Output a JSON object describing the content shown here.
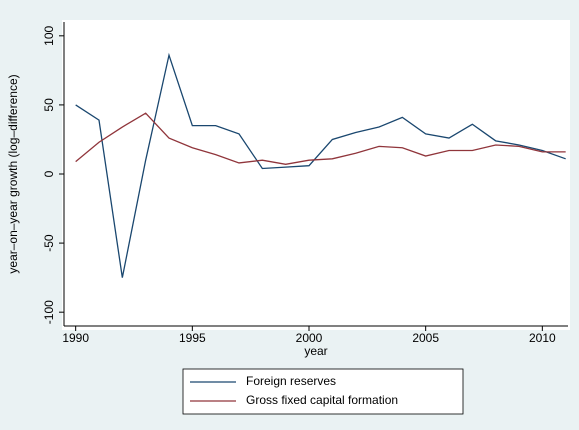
{
  "chart_data": {
    "type": "line",
    "x_label": "year",
    "y_label": "year–on–year growth (log–difference)",
    "x": [
      1990,
      1991,
      1992,
      1993,
      1994,
      1995,
      1996,
      1997,
      1998,
      1999,
      2000,
      2001,
      2002,
      2003,
      2004,
      2005,
      2006,
      2007,
      2008,
      2009,
      2010,
      2011
    ],
    "series": [
      {
        "name": "Foreign reserves",
        "color": "#1a476f",
        "values": [
          50,
          39,
          -75,
          10,
          86,
          35,
          35,
          29,
          4,
          5,
          6,
          25,
          30,
          34,
          41,
          29,
          26,
          36,
          24,
          21,
          17,
          11
        ]
      },
      {
        "name": "Gross fixed capital formation",
        "color": "#90353b",
        "values": [
          9,
          23,
          34,
          44,
          26,
          19,
          14,
          8,
          10,
          7,
          10,
          11,
          15,
          20,
          19,
          13,
          17,
          17,
          21,
          20,
          16,
          16
        ]
      }
    ],
    "xlim": [
      1989.5,
      2011.1
    ],
    "xticks": [
      1990,
      1995,
      2000,
      2005,
      2010
    ],
    "ylim": [
      -110,
      110
    ],
    "yticks": [
      -100,
      -50,
      0,
      50,
      100
    ],
    "legend": "bottom"
  }
}
